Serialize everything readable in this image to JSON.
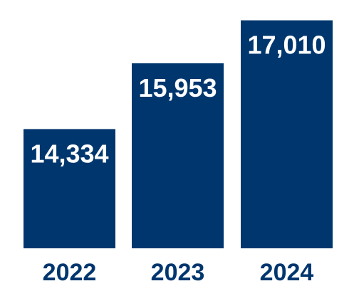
{
  "colors": {
    "bar": "#00366e",
    "value_label": "#ffffff",
    "category_label": "#00366e",
    "background": "#ffffff"
  },
  "chart_data": {
    "type": "bar",
    "title": "",
    "xlabel": "",
    "ylabel": "",
    "categories": [
      "2022",
      "2023",
      "2024"
    ],
    "values": [
      14334,
      15953,
      17010
    ],
    "value_labels": [
      "14,334",
      "15,953",
      "17,010"
    ],
    "ylim": [
      11400,
      17510
    ],
    "grid": false,
    "legend": "none",
    "show_axes": false,
    "show_data_labels": true
  }
}
